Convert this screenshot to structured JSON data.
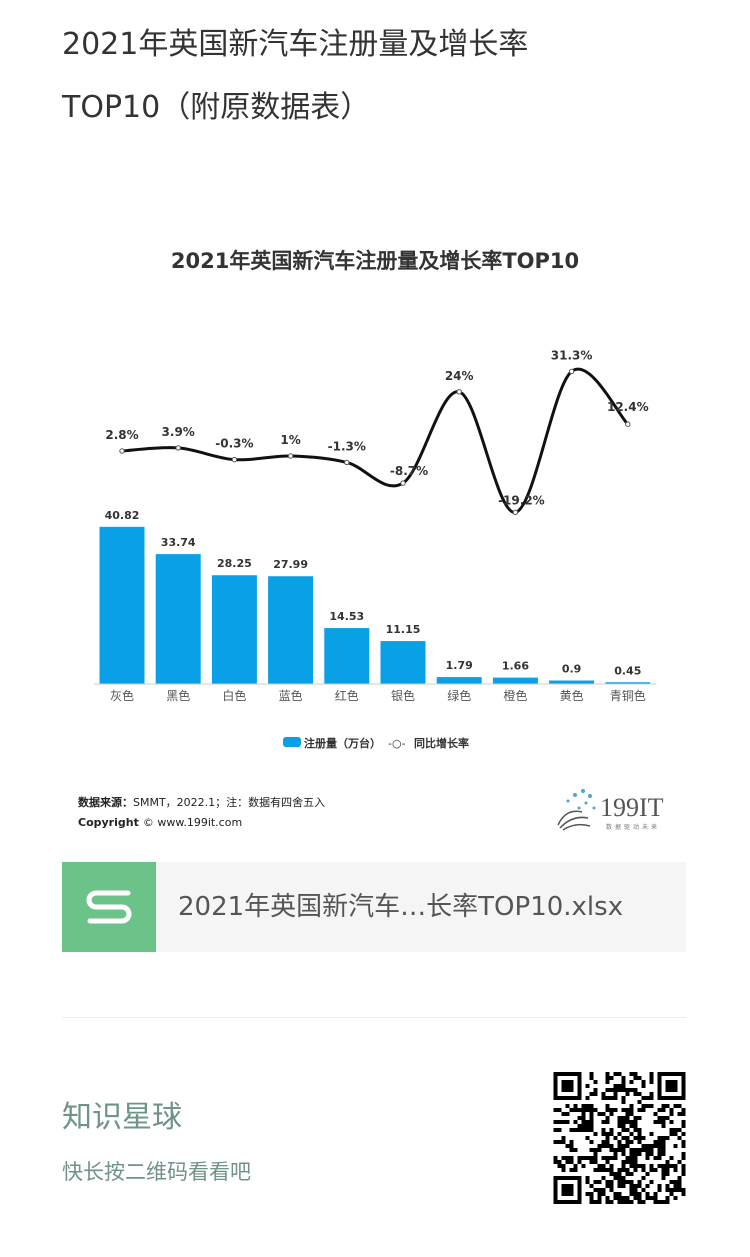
{
  "article": {
    "title_line1": "2021年英国新汽车注册量及增长率",
    "title_line2": "TOP10（附原数据表）"
  },
  "chart_data": {
    "type": "bar+line",
    "title": "2021年英国新汽车注册量及增长率TOP10",
    "categories": [
      "灰色",
      "黑色",
      "白色",
      "蓝色",
      "红色",
      "银色",
      "绿色",
      "橙色",
      "黄色",
      "青铜色"
    ],
    "series": [
      {
        "name": "注册量（万台）",
        "type": "bar",
        "color": "#0aa0e6",
        "values": [
          40.82,
          33.74,
          28.25,
          27.99,
          14.53,
          11.15,
          1.79,
          1.66,
          0.9,
          0.45
        ],
        "labels": [
          "40.82",
          "33.74",
          "28.25",
          "27.99",
          "14.53",
          "11.15",
          "1.79",
          "1.66",
          "0.9",
          "0.45"
        ]
      },
      {
        "name": "同比增长率",
        "type": "line",
        "color": "#111111",
        "values": [
          2.8,
          3.9,
          -0.3,
          1,
          -1.3,
          -8.7,
          24,
          -19.2,
          31.3,
          12.4
        ],
        "labels": [
          "2.8%",
          "3.9%",
          "-0.3%",
          "1%",
          "-1.3%",
          "-8.7%",
          "24%",
          "-19.2%",
          "31.3%",
          "12.4%"
        ]
      }
    ],
    "legend": {
      "bar_label": "注册量（万台）",
      "line_symbol": "-○-",
      "line_label": "同比增长率",
      "placement": "bottom"
    },
    "source_label": "数据来源：",
    "source_text": "SMMT，2022.1；注：数据有四舍五入",
    "copyright_label": "Copyright",
    "copyright_text": "© www.199it.com",
    "logo_text": "199IT",
    "logo_tagline": "数据驱动未来"
  },
  "attachment": {
    "file_name": "2021年英国新汽车…长率TOP10.xlsx",
    "icon": "spreadsheet-s-icon",
    "color": "#6cc38a"
  },
  "footer": {
    "planet_title": "知识星球",
    "hint": "快长按二维码看看吧"
  }
}
